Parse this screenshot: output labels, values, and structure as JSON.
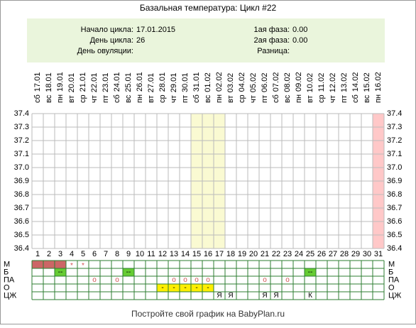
{
  "title": "Базальная температура: Цикл #22",
  "info": {
    "left": [
      {
        "label": "Начало цикла:",
        "value": "17.01.2015"
      },
      {
        "label": "День цикла:",
        "value": "26"
      },
      {
        "label": "День овуляции:"
      }
    ],
    "right": [
      {
        "label": "1ая фаза:",
        "value": "0.00"
      },
      {
        "label": "2ая фаза:",
        "value": "0.00"
      },
      {
        "label": "Разница:"
      }
    ]
  },
  "days": [
    {
      "number": 1,
      "weekday": "сб",
      "date": "17.01"
    },
    {
      "number": 2,
      "weekday": "вс",
      "date": "18.01"
    },
    {
      "number": 3,
      "weekday": "пн",
      "date": "19.01"
    },
    {
      "number": 4,
      "weekday": "вт",
      "date": "20.01"
    },
    {
      "number": 5,
      "weekday": "ср",
      "date": "21.01"
    },
    {
      "number": 6,
      "weekday": "чт",
      "date": "22.01"
    },
    {
      "number": 7,
      "weekday": "пт",
      "date": "23.01"
    },
    {
      "number": 8,
      "weekday": "сб",
      "date": "24.01"
    },
    {
      "number": 9,
      "weekday": "вс",
      "date": "25.01"
    },
    {
      "number": 10,
      "weekday": "пн",
      "date": "26.01"
    },
    {
      "number": 11,
      "weekday": "вт",
      "date": "27.01"
    },
    {
      "number": 12,
      "weekday": "ср",
      "date": "28.01"
    },
    {
      "number": 13,
      "weekday": "чт",
      "date": "29.01"
    },
    {
      "number": 14,
      "weekday": "пт",
      "date": "30.01"
    },
    {
      "number": 15,
      "weekday": "сб",
      "date": "31.01"
    },
    {
      "number": 16,
      "weekday": "вс",
      "date": "01.02"
    },
    {
      "number": 17,
      "weekday": "пн",
      "date": "02.02"
    },
    {
      "number": 18,
      "weekday": "вт",
      "date": "03.02"
    },
    {
      "number": 19,
      "weekday": "ср",
      "date": "04.02"
    },
    {
      "number": 20,
      "weekday": "чт",
      "date": "05.02"
    },
    {
      "number": 21,
      "weekday": "пт",
      "date": "06.02"
    },
    {
      "number": 22,
      "weekday": "сб",
      "date": "07.02"
    },
    {
      "number": 23,
      "weekday": "вс",
      "date": "08.02"
    },
    {
      "number": 24,
      "weekday": "пн",
      "date": "09.02"
    },
    {
      "number": 25,
      "weekday": "вт",
      "date": "10.02"
    },
    {
      "number": 26,
      "weekday": "ср",
      "date": "11.02"
    },
    {
      "number": 27,
      "weekday": "чт",
      "date": "12.02"
    },
    {
      "number": 28,
      "weekday": "пт",
      "date": "13.02"
    },
    {
      "number": 29,
      "weekday": "сб",
      "date": "14.02"
    },
    {
      "number": 30,
      "weekday": "вс",
      "date": "15.02"
    },
    {
      "number": 31,
      "weekday": "пн",
      "date": "16.02"
    }
  ],
  "temperature": {
    "ylim": [
      36.4,
      37.4
    ],
    "yticks": [
      36.4,
      36.5,
      36.6,
      36.7,
      36.8,
      36.9,
      {
        "value": 37,
        "label": "37.0"
      },
      37.1,
      37.2,
      37.3,
      37.4
    ]
  },
  "highlights": [
    {
      "day": 15,
      "color": "#fafad2"
    },
    {
      "day": 16,
      "color": "#fafad2"
    },
    {
      "day": 17,
      "color": "#fafad2"
    },
    {
      "day": 31,
      "color": "#ffc8c8"
    }
  ],
  "rows": [
    {
      "label": "М",
      "cells": [
        {
          "day": 1,
          "fill": "#cc6666"
        },
        {
          "day": 2,
          "fill": "#cc6666"
        },
        {
          "day": 3,
          "fill": "#cc6666"
        },
        {
          "day": 4,
          "text": "*"
        },
        {
          "day": 5,
          "text": "*"
        }
      ]
    },
    {
      "label": "Б",
      "cells": [
        {
          "day": 3,
          "text": "--",
          "fill": "#66cc33"
        },
        {
          "day": 9,
          "text": "--",
          "fill": "#66cc33"
        },
        {
          "day": 25,
          "text": "--",
          "fill": "#66cc33"
        }
      ]
    },
    {
      "label": "ПА",
      "cells": [
        {
          "day": 6,
          "text": "o"
        },
        {
          "day": 8,
          "text": "o"
        },
        {
          "day": 13,
          "text": "o"
        },
        {
          "day": 14,
          "text": "o"
        },
        {
          "day": 15,
          "text": "o"
        },
        {
          "day": 16,
          "text": "o"
        },
        {
          "day": 21,
          "text": "o"
        },
        {
          "day": 23,
          "text": "o"
        }
      ]
    },
    {
      "label": "О",
      "cells": [
        {
          "day": 12,
          "text": "-",
          "fill": "#ffee00"
        },
        {
          "day": 13,
          "text": "-",
          "fill": "#ffee00"
        },
        {
          "day": 14,
          "text": "-",
          "fill": "#ffee00"
        },
        {
          "day": 15,
          "text": "-",
          "fill": "#ffee00"
        },
        {
          "day": 16,
          "text": "-",
          "fill": "#ffee00"
        }
      ]
    },
    {
      "label": "ЦЖ",
      "cells": [
        {
          "day": 17,
          "text": "Я"
        },
        {
          "day": 18,
          "text": "Я"
        },
        {
          "day": 21,
          "text": "Я"
        },
        {
          "day": 22,
          "text": "Я"
        },
        {
          "day": 25,
          "text": "К"
        }
      ]
    }
  ],
  "footer": "Постройте свой график на BabyPlan.ru"
}
